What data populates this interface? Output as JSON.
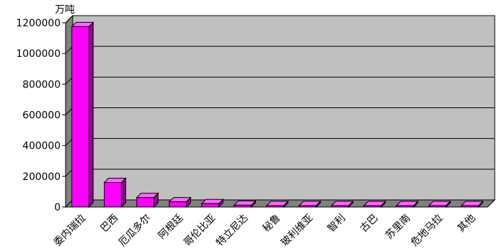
{
  "chart_data": {
    "type": "bar",
    "title": "",
    "unit_label": "万吨",
    "xlabel": "",
    "ylabel": "",
    "ylim": [
      0,
      1200000
    ],
    "yticks": [
      "0",
      "200000",
      "400000",
      "600000",
      "800000",
      "1000000",
      "1200000"
    ],
    "ytick_values": [
      0,
      200000,
      400000,
      600000,
      800000,
      1000000,
      1200000
    ],
    "grid": true,
    "legend": "none",
    "categories": [
      "委内瑞拉",
      "巴西",
      "厄瓜多尔",
      "阿根廷",
      "哥伦比亚",
      "特立尼达",
      "秘鲁",
      "玻利维亚",
      "智利",
      "古巴",
      "苏里南",
      "危地马拉",
      "其他"
    ],
    "values": [
      1175000,
      160000,
      62000,
      34000,
      22000,
      12000,
      8000,
      6000,
      4000,
      3000,
      2500,
      2000,
      1500
    ],
    "colors": {
      "bar_front": "#ff00ff",
      "bar_side": "#990099",
      "bar_top": "#ff66ff",
      "plot_back": "#c0c0c0",
      "plot_side": "#808080",
      "gridline": "#000000"
    }
  }
}
